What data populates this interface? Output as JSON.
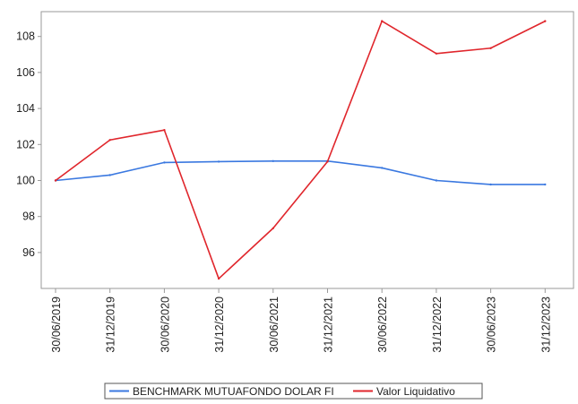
{
  "chart_data": {
    "type": "line",
    "x": [
      "30/06/2019",
      "31/12/2019",
      "30/06/2020",
      "31/12/2020",
      "30/06/2021",
      "31/12/2021",
      "30/06/2022",
      "31/12/2022",
      "30/06/2023",
      "31/12/2023"
    ],
    "yticks": [
      96,
      98,
      100,
      102,
      104,
      106,
      108
    ],
    "ylim": [
      94.5,
      109.1
    ],
    "grid": false,
    "legend_position": "bottom",
    "series": [
      {
        "name": "BENCHMARK MUTUAFONDO DOLAR FI",
        "color": "#3a78e0",
        "values": [
          100.0,
          100.3,
          101.0,
          101.05,
          101.08,
          101.08,
          100.7,
          100.0,
          99.78,
          99.78
        ]
      },
      {
        "name": "Valor Liquidativo",
        "color": "#e0262c",
        "values": [
          100.0,
          102.25,
          102.8,
          94.55,
          97.35,
          101.05,
          108.85,
          107.05,
          107.35,
          108.85
        ]
      }
    ]
  }
}
